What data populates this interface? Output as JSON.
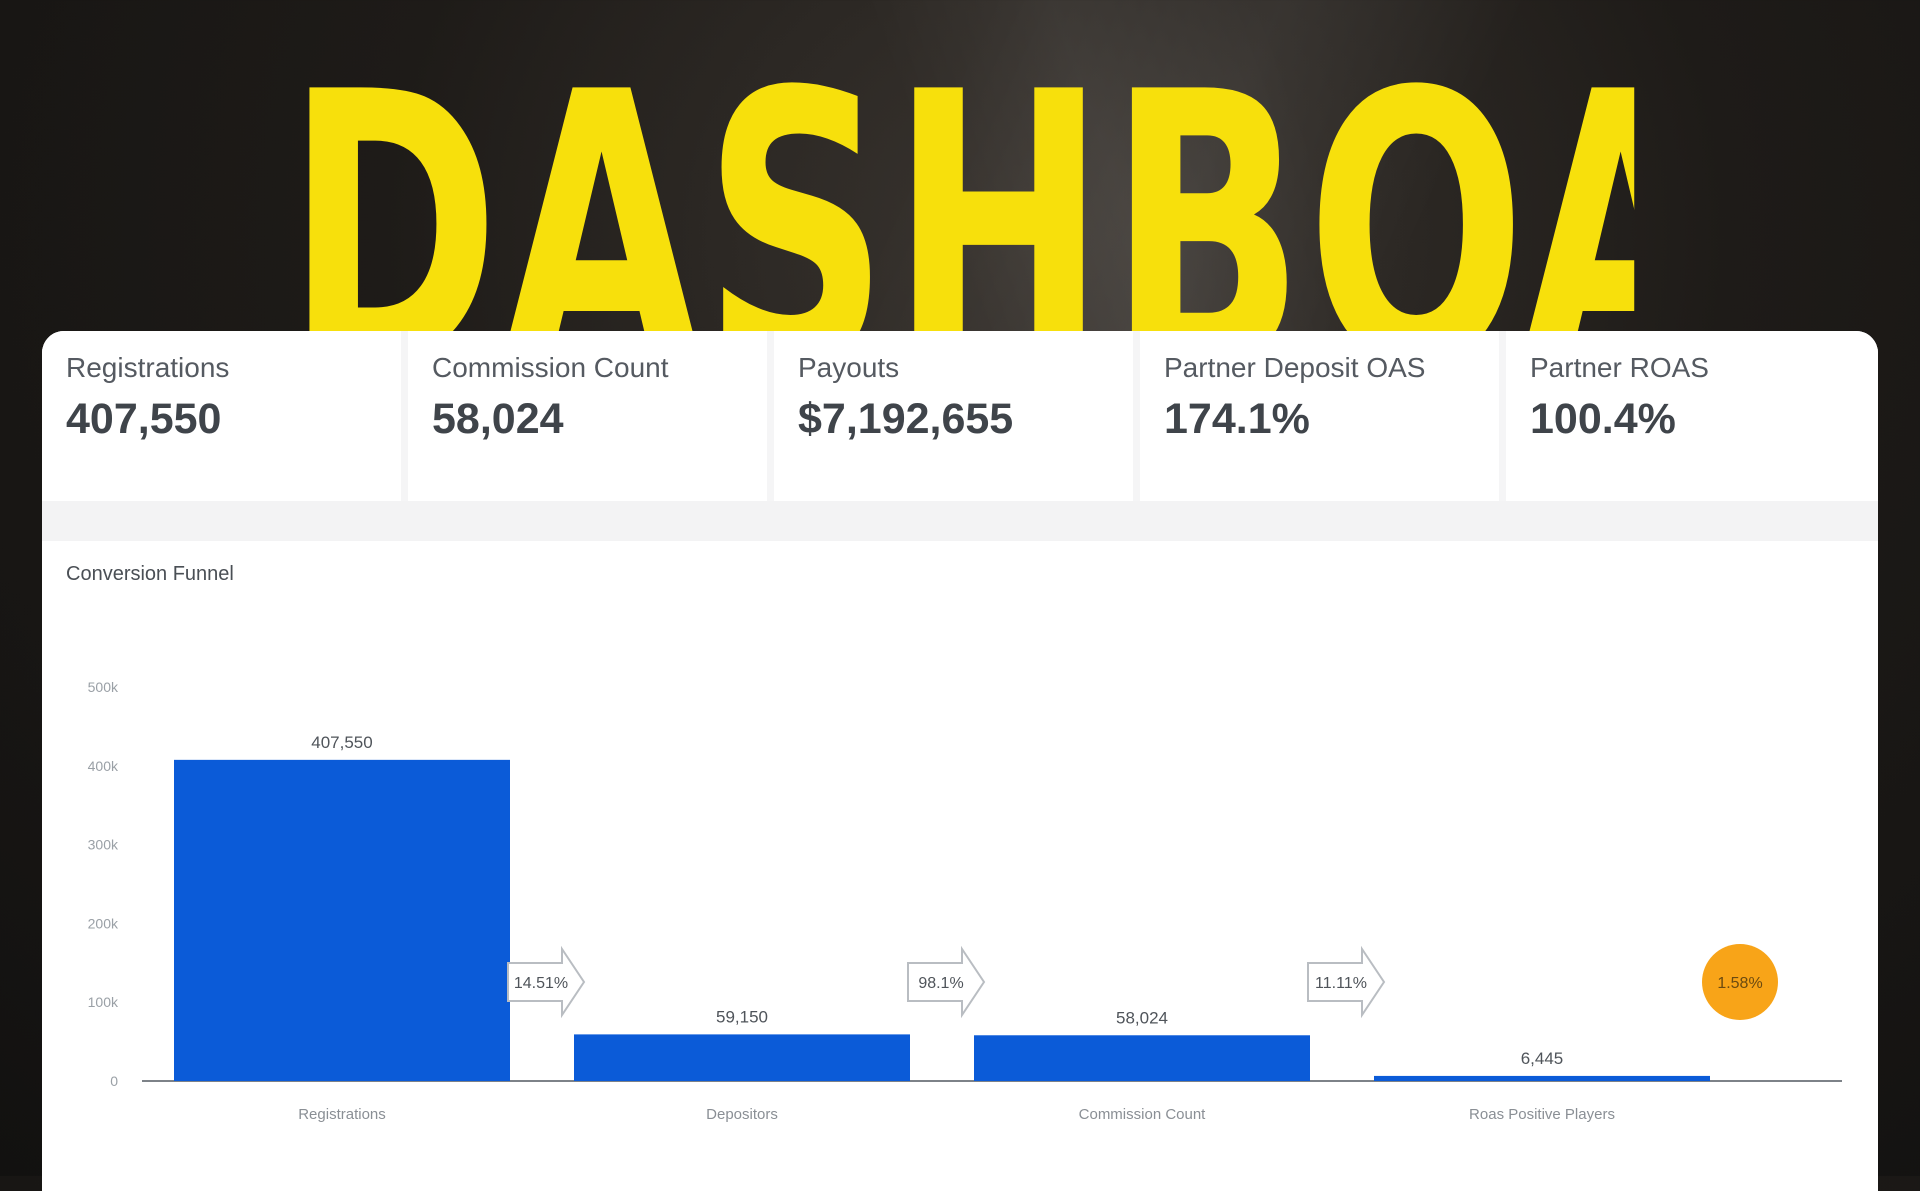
{
  "hero": {
    "title": "DASHBOARD"
  },
  "kpis": [
    {
      "label": "Registrations",
      "value": "407,550"
    },
    {
      "label": "Commission Count",
      "value": "58,024"
    },
    {
      "label": "Payouts",
      "value": "$7,192,655"
    },
    {
      "label": "Partner Deposit OAS",
      "value": "174.1%"
    },
    {
      "label": "Partner ROAS",
      "value": "100.4%"
    }
  ],
  "colors": {
    "bar": "#0b5bd8",
    "badge": "#f8a418",
    "title": "#f7e00c"
  },
  "chart_data": {
    "type": "bar",
    "title": "Conversion Funnel",
    "categories": [
      "Registrations",
      "Depositors",
      "Commission Count",
      "Roas Positive Players"
    ],
    "values": [
      407550,
      59150,
      58024,
      6445
    ],
    "value_labels": [
      "407,550",
      "59,150",
      "58,024",
      "6,445"
    ],
    "conversion_rates": [
      "14.51%",
      "98.1%",
      "11.11%"
    ],
    "overall_rate": "1.58%",
    "ylim": [
      0,
      500000
    ],
    "y_ticks": [
      {
        "value": 0,
        "label": "0"
      },
      {
        "value": 100000,
        "label": "100k"
      },
      {
        "value": 200000,
        "label": "200k"
      },
      {
        "value": 300000,
        "label": "300k"
      },
      {
        "value": 400000,
        "label": "400k"
      },
      {
        "value": 500000,
        "label": "500k"
      }
    ],
    "grid": false,
    "legend": "none"
  }
}
